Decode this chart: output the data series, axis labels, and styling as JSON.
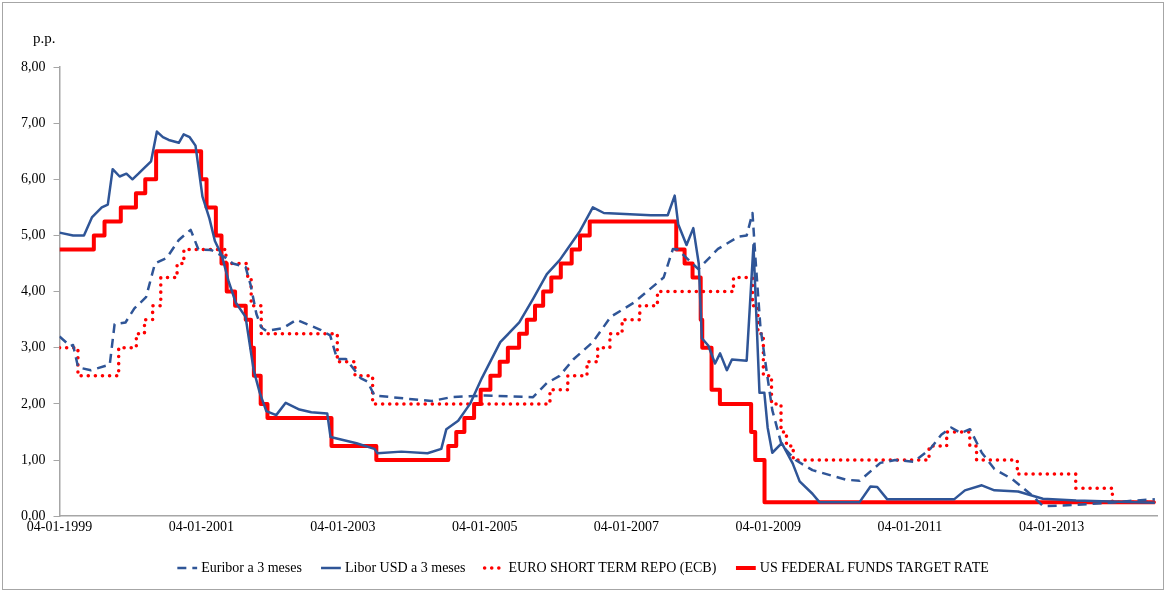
{
  "chart_data": {
    "type": "line",
    "ylabel": "p.p.",
    "xlim": [
      "1999-01-04",
      "2014-07-01"
    ],
    "xticks": [
      {
        "value": "1999-01-04",
        "label": "04-01-1999"
      },
      {
        "value": "2001-01-04",
        "label": "04-01-2001"
      },
      {
        "value": "2003-01-04",
        "label": "04-01-2003"
      },
      {
        "value": "2005-01-04",
        "label": "04-01-2005"
      },
      {
        "value": "2007-01-04",
        "label": "04-01-2007"
      },
      {
        "value": "2009-01-04",
        "label": "04-01-2009"
      },
      {
        "value": "2011-01-04",
        "label": "04-01-2011"
      },
      {
        "value": "2013-01-04",
        "label": "04-01-2013"
      }
    ],
    "ylim": [
      0,
      8
    ],
    "yticks": [
      {
        "value": 0,
        "label": "0,00"
      },
      {
        "value": 1,
        "label": "1,00"
      },
      {
        "value": 2,
        "label": "2,00"
      },
      {
        "value": 3,
        "label": "3,00"
      },
      {
        "value": 4,
        "label": "4,00"
      },
      {
        "value": 5,
        "label": "5,00"
      },
      {
        "value": 6,
        "label": "6,00"
      },
      {
        "value": 7,
        "label": "7,00"
      },
      {
        "value": 8,
        "label": "8,00"
      }
    ],
    "grid": false,
    "legend": "bottom",
    "marker": "none",
    "series": [
      {
        "name": "Euribor a 3 meses",
        "type": "line",
        "line_style": "dashed",
        "color": "#2f5597",
        "x": [
          "1999-01-04",
          "1999-03-01",
          "1999-03-15",
          "1999-04-10",
          "1999-06-15",
          "1999-09-20",
          "1999-10-15",
          "1999-12-10",
          "2000-01-25",
          "2000-03-25",
          "2000-05-10",
          "2000-07-10",
          "2000-09-10",
          "2000-11-10",
          "2000-12-20",
          "2001-02-25",
          "2001-05-10",
          "2001-06-15",
          "2001-08-20",
          "2001-09-15",
          "2001-10-15",
          "2001-11-10",
          "2001-12-05",
          "2002-03-01",
          "2002-05-10",
          "2002-09-10",
          "2002-10-30",
          "2002-12-05",
          "2003-01-20",
          "2003-04-05",
          "2003-05-10",
          "2003-06-15",
          "2004-04-05",
          "2004-07-15",
          "2005-01-10",
          "2005-09-10",
          "2005-11-20",
          "2006-01-25",
          "2006-04-05",
          "2006-07-15",
          "2006-10-15",
          "2007-02-10",
          "2007-07-15",
          "2007-09-01",
          "2007-09-25",
          "2008-01-10",
          "2008-04-20",
          "2008-08-05",
          "2008-09-15",
          "2008-10-15",
          "2008-10-30",
          "2008-11-25",
          "2009-01-01",
          "2009-01-25",
          "2009-03-15",
          "2009-05-25",
          "2009-08-20",
          "2010-02-10",
          "2010-04-20",
          "2010-08-05",
          "2010-10-20",
          "2011-01-25",
          "2011-04-20",
          "2011-06-15",
          "2011-08-05",
          "2011-09-25",
          "2011-11-10",
          "2012-01-10",
          "2012-03-15",
          "2012-06-15",
          "2012-09-25",
          "2012-11-20",
          "2013-05-10",
          "2013-10-30",
          "2014-03-15",
          "2014-06-20"
        ],
        "values": [
          3.2,
          3.03,
          3.05,
          2.65,
          2.6,
          2.7,
          3.42,
          3.45,
          3.7,
          3.9,
          4.5,
          4.6,
          4.92,
          5.1,
          4.75,
          4.74,
          4.6,
          4.5,
          4.44,
          4.12,
          3.6,
          3.36,
          3.3,
          3.35,
          3.5,
          3.32,
          3.22,
          2.8,
          2.8,
          2.46,
          2.4,
          2.15,
          2.05,
          2.12,
          2.15,
          2.12,
          2.37,
          2.5,
          2.79,
          3.1,
          3.55,
          3.8,
          4.25,
          4.76,
          4.75,
          4.4,
          4.76,
          4.98,
          5.0,
          5.4,
          4.6,
          3.36,
          2.46,
          1.89,
          1.26,
          1.0,
          0.82,
          0.65,
          0.63,
          0.95,
          1.0,
          0.97,
          1.2,
          1.45,
          1.58,
          1.48,
          1.55,
          1.13,
          0.84,
          0.66,
          0.37,
          0.18,
          0.2,
          0.24,
          0.28,
          0.3
        ]
      },
      {
        "name": "Libor USD a 3 meses",
        "type": "line",
        "line_style": "solid",
        "color": "#2f5597",
        "x": [
          "1999-01-04",
          "1999-03-15",
          "1999-05-10",
          "1999-06-20",
          "1999-08-10",
          "1999-09-10",
          "1999-10-05",
          "1999-11-10",
          "1999-12-15",
          "2000-01-15",
          "2000-02-15",
          "2000-03-15",
          "2000-04-20",
          "2000-05-20",
          "2000-06-20",
          "2000-07-20",
          "2000-09-10",
          "2000-10-05",
          "2000-11-05",
          "2000-12-05",
          "2001-01-10",
          "2001-02-15",
          "2001-03-15",
          "2001-04-20",
          "2001-05-25",
          "2001-07-01",
          "2001-08-20",
          "2001-10-01",
          "2001-11-01",
          "2001-12-05",
          "2002-01-25",
          "2002-03-15",
          "2002-05-25",
          "2002-07-25",
          "2002-10-15",
          "2002-11-01",
          "2003-03-15",
          "2003-06-15",
          "2003-07-01",
          "2003-11-01",
          "2004-03-15",
          "2004-05-25",
          "2004-06-20",
          "2004-08-20",
          "2004-10-20",
          "2004-12-20",
          "2005-03-25",
          "2005-07-01",
          "2005-09-10",
          "2005-11-20",
          "2006-01-25",
          "2006-05-10",
          "2006-07-15",
          "2006-09-10",
          "2007-05-10",
          "2007-08-05",
          "2007-09-10",
          "2007-09-28",
          "2007-11-10",
          "2007-12-15",
          "2008-01-12",
          "2008-01-28",
          "2008-03-01",
          "2008-04-05",
          "2008-05-01",
          "2008-06-05",
          "2008-07-01",
          "2008-09-15",
          "2008-10-20",
          "2008-11-20",
          "2008-12-15",
          "2009-01-01",
          "2009-01-25",
          "2009-03-15",
          "2009-05-10",
          "2009-06-15",
          "2009-08-20",
          "2009-09-25",
          "2010-04-20",
          "2010-06-15",
          "2010-07-20",
          "2010-09-10",
          "2011-08-20",
          "2011-10-15",
          "2012-01-10",
          "2012-03-15",
          "2012-07-15",
          "2012-11-20",
          "2013-05-10",
          "2014-03-15",
          "2014-06-20"
        ],
        "values": [
          5.05,
          5.0,
          5.0,
          5.32,
          5.5,
          5.55,
          6.18,
          6.05,
          6.1,
          6.0,
          6.1,
          6.2,
          6.32,
          6.85,
          6.75,
          6.7,
          6.65,
          6.8,
          6.75,
          6.6,
          5.69,
          5.3,
          4.9,
          4.64,
          4.18,
          3.8,
          3.55,
          2.6,
          2.2,
          1.87,
          1.8,
          2.02,
          1.9,
          1.85,
          1.83,
          1.41,
          1.3,
          1.2,
          1.12,
          1.15,
          1.12,
          1.2,
          1.55,
          1.7,
          2.0,
          2.46,
          3.1,
          3.45,
          3.87,
          4.31,
          4.56,
          5.08,
          5.5,
          5.4,
          5.36,
          5.36,
          5.71,
          5.2,
          4.83,
          5.13,
          4.5,
          3.17,
          3.04,
          2.72,
          2.9,
          2.6,
          2.79,
          2.77,
          4.83,
          2.2,
          2.2,
          1.58,
          1.13,
          1.3,
          0.94,
          0.62,
          0.4,
          0.25,
          0.25,
          0.53,
          0.52,
          0.3,
          0.3,
          0.46,
          0.55,
          0.46,
          0.44,
          0.31,
          0.28,
          0.25,
          0.24
        ]
      },
      {
        "name": "EURO SHORT TERM REPO (ECB)",
        "type": "step",
        "line_style": "dotted",
        "color": "#ff0000",
        "x": [
          "1999-01-04",
          "1999-04-09",
          "1999-11-05",
          "2000-02-04",
          "2000-03-17",
          "2000-04-28",
          "2000-06-09",
          "2000-09-01",
          "2000-10-06",
          "2001-05-11",
          "2001-08-31",
          "2001-09-18",
          "2001-11-09",
          "2002-12-06",
          "2003-03-07",
          "2003-06-06",
          "2005-12-06",
          "2006-03-08",
          "2006-06-15",
          "2006-08-09",
          "2006-10-11",
          "2006-12-13",
          "2007-03-14",
          "2007-06-13",
          "2008-07-09",
          "2008-10-15",
          "2008-11-12",
          "2008-12-10",
          "2009-01-21",
          "2009-03-11",
          "2009-04-08",
          "2009-05-13",
          "2011-04-13",
          "2011-07-13",
          "2011-11-09",
          "2011-12-14",
          "2012-07-11",
          "2013-05-08",
          "2013-11-13",
          "2014-06-20"
        ],
        "values": [
          3.0,
          2.5,
          3.0,
          3.25,
          3.5,
          3.75,
          4.25,
          4.5,
          4.75,
          4.5,
          4.25,
          3.75,
          3.25,
          2.75,
          2.5,
          2.0,
          2.25,
          2.5,
          2.75,
          3.0,
          3.25,
          3.5,
          3.75,
          4.0,
          4.25,
          3.75,
          3.25,
          2.5,
          2.0,
          1.5,
          1.25,
          1.0,
          1.25,
          1.5,
          1.25,
          1.0,
          0.75,
          0.5,
          0.25,
          0.25
        ]
      },
      {
        "name": "US FEDERAL FUNDS TARGET RATE",
        "type": "step",
        "line_style": "solid",
        "color": "#ff0000",
        "x": [
          "1999-01-04",
          "1999-06-30",
          "1999-08-24",
          "1999-11-16",
          "2000-02-02",
          "2000-03-21",
          "2000-05-16",
          "2001-01-03",
          "2001-01-31",
          "2001-03-20",
          "2001-04-18",
          "2001-05-15",
          "2001-06-27",
          "2001-08-21",
          "2001-09-17",
          "2001-10-02",
          "2001-11-06",
          "2001-12-11",
          "2002-11-06",
          "2003-06-25",
          "2004-06-30",
          "2004-08-10",
          "2004-09-21",
          "2004-11-10",
          "2004-12-14",
          "2005-02-02",
          "2005-03-22",
          "2005-05-03",
          "2005-06-30",
          "2005-08-09",
          "2005-09-20",
          "2005-11-01",
          "2005-12-13",
          "2006-01-31",
          "2006-03-28",
          "2006-05-10",
          "2006-06-29",
          "2007-09-18",
          "2007-10-31",
          "2007-12-11",
          "2008-01-22",
          "2008-01-30",
          "2008-03-18",
          "2008-04-30",
          "2008-10-08",
          "2008-10-29",
          "2008-12-16",
          "2014-06-20"
        ],
        "values": [
          4.75,
          5.0,
          5.25,
          5.5,
          5.75,
          6.0,
          6.5,
          6.0,
          5.5,
          5.0,
          4.5,
          4.0,
          3.75,
          3.5,
          3.0,
          2.5,
          2.0,
          1.75,
          1.25,
          1.0,
          1.25,
          1.5,
          1.75,
          2.0,
          2.25,
          2.5,
          2.75,
          3.0,
          3.25,
          3.5,
          3.75,
          4.0,
          4.25,
          4.5,
          4.75,
          5.0,
          5.25,
          4.75,
          4.5,
          4.25,
          3.5,
          3.0,
          2.25,
          2.0,
          1.5,
          1.0,
          0.25,
          0.25
        ]
      }
    ]
  }
}
